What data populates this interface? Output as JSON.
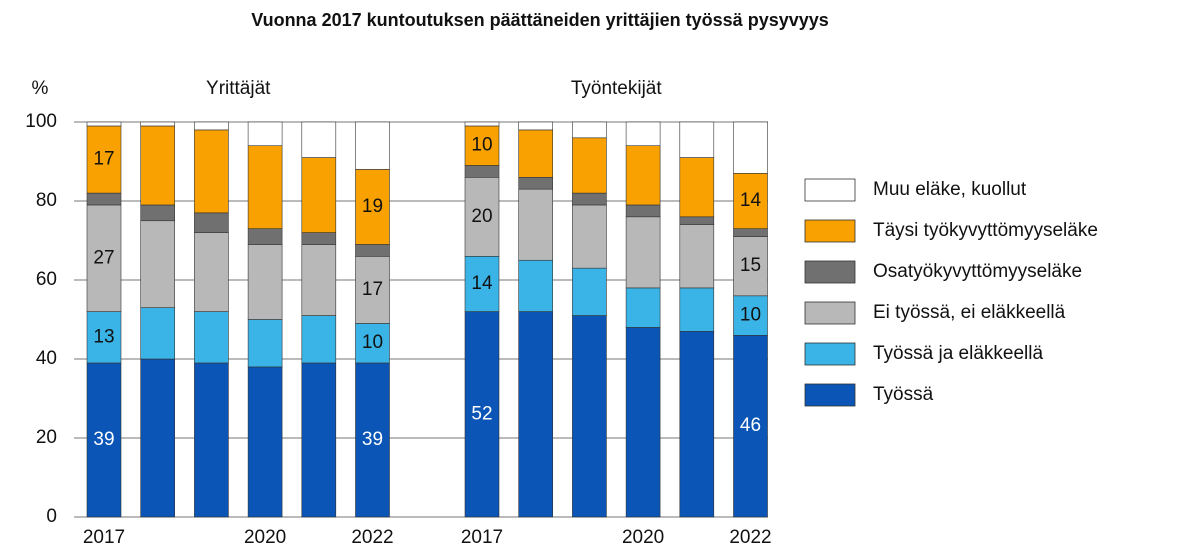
{
  "chart_data": {
    "type": "bar",
    "stacked": true,
    "title": "Vuonna 2017 kuntoutuksen päättäneiden yrittäjien työssä pysyvyys",
    "y_label": "%",
    "ylim": [
      0,
      100
    ],
    "yticks": [
      0,
      20,
      40,
      60,
      80,
      100
    ],
    "grid": true,
    "groups": [
      {
        "name": "Yrittäjät",
        "categories": [
          "2017",
          null,
          null,
          "2020",
          null,
          "2022"
        ]
      },
      {
        "name": "Työntekijät",
        "categories": [
          "2017",
          null,
          null,
          "2020",
          null,
          "2022"
        ]
      }
    ],
    "series": [
      {
        "name": "Työssä",
        "color": "#0a55b5",
        "values": [
          [
            39,
            40,
            39,
            38,
            39,
            39
          ],
          [
            52,
            52,
            51,
            48,
            47,
            46
          ]
        ],
        "value_labels": [
          [
            "39",
            null,
            null,
            null,
            null,
            "39"
          ],
          [
            "52",
            null,
            null,
            null,
            null,
            "46"
          ]
        ]
      },
      {
        "name": "Työssä ja eläkkeellä",
        "color": "#3ab4e6",
        "values": [
          [
            13,
            13,
            13,
            12,
            12,
            10
          ],
          [
            14,
            13,
            12,
            10,
            11,
            10
          ]
        ],
        "value_labels": [
          [
            "13",
            null,
            null,
            null,
            null,
            "10"
          ],
          [
            "14",
            null,
            null,
            null,
            null,
            "10"
          ]
        ]
      },
      {
        "name": "Ei työssä, ei eläkkeellä",
        "color": "#b8b8b8",
        "values": [
          [
            27,
            22,
            20,
            19,
            18,
            17
          ],
          [
            20,
            18,
            16,
            18,
            16,
            15
          ]
        ],
        "value_labels": [
          [
            "27",
            null,
            null,
            null,
            null,
            "17"
          ],
          [
            "20",
            null,
            null,
            null,
            null,
            "15"
          ]
        ]
      },
      {
        "name": "Osatyökyvyttömyyseläke",
        "color": "#707070",
        "values": [
          [
            3,
            4,
            5,
            4,
            3,
            3
          ],
          [
            3,
            3,
            3,
            3,
            2,
            2
          ]
        ]
      },
      {
        "name": "Täysi työkyvyttömyyseläke",
        "color": "#f8a100",
        "values": [
          [
            17,
            20,
            21,
            21,
            19,
            19
          ],
          [
            10,
            12,
            14,
            15,
            15,
            14
          ]
        ],
        "value_labels": [
          [
            "17",
            null,
            null,
            null,
            null,
            "19"
          ],
          [
            "10",
            null,
            null,
            null,
            null,
            "14"
          ]
        ]
      },
      {
        "name": "Muu eläke, kuollut",
        "color": "#ffffff",
        "values": [
          [
            1,
            1,
            2,
            6,
            9,
            12
          ],
          [
            1,
            2,
            4,
            6,
            9,
            13
          ]
        ]
      }
    ]
  }
}
